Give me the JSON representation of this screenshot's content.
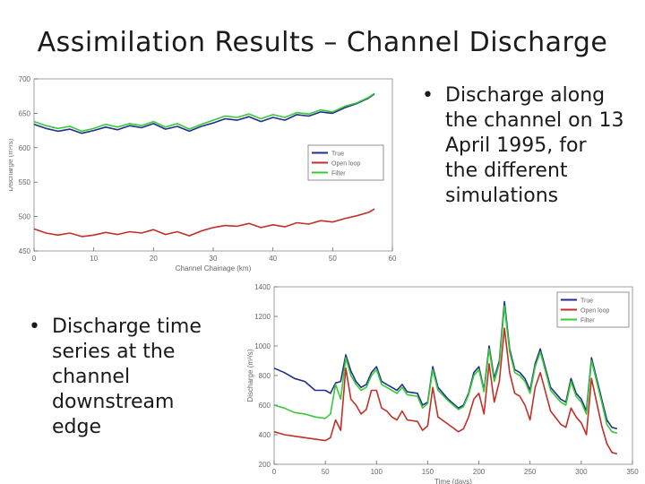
{
  "slide": {
    "title": "Assimilation Results – Channel Discharge"
  },
  "bullets": [
    {
      "marker": "•",
      "text": "Discharge along the channel on 13 April 1995, for the different simulations"
    },
    {
      "marker": "•",
      "text": "Discharge time series at the channel downstream edge"
    }
  ],
  "chart_data": [
    {
      "type": "line",
      "title": "",
      "xlabel": "Channel Chainage (km)",
      "ylabel": "Discharge (m³/s)",
      "xlim": [
        0,
        60
      ],
      "ylim": [
        450,
        700
      ],
      "xticks": [
        0,
        10,
        20,
        30,
        40,
        50,
        60
      ],
      "xtick_labels": [
        "0",
        "10",
        "20",
        "30",
        "40",
        "50",
        "60"
      ],
      "yticks": [
        450,
        500,
        550,
        600,
        650,
        700
      ],
      "ytick_labels": [
        "450",
        "500",
        "550",
        "600",
        "650",
        "700"
      ],
      "legend_position": "center-right",
      "series": [
        {
          "name": "True",
          "color": "#1f2f8a",
          "x": [
            0,
            2,
            4,
            6,
            8,
            10,
            12,
            14,
            16,
            18,
            20,
            22,
            24,
            26,
            28,
            30,
            32,
            34,
            36,
            38,
            40,
            42,
            44,
            46,
            48,
            50,
            52,
            54,
            56,
            57
          ],
          "y": [
            634,
            628,
            624,
            627,
            621,
            625,
            630,
            626,
            632,
            629,
            635,
            627,
            631,
            624,
            631,
            636,
            642,
            640,
            645,
            638,
            644,
            640,
            648,
            646,
            652,
            650,
            658,
            664,
            672,
            678
          ]
        },
        {
          "name": "Open loop",
          "color": "#c0302a",
          "x": [
            0,
            2,
            4,
            6,
            8,
            10,
            12,
            14,
            16,
            18,
            20,
            22,
            24,
            26,
            28,
            30,
            32,
            34,
            36,
            38,
            40,
            42,
            44,
            46,
            48,
            50,
            52,
            54,
            56,
            57
          ],
          "y": [
            482,
            476,
            473,
            476,
            471,
            473,
            477,
            474,
            478,
            476,
            481,
            474,
            478,
            472,
            479,
            484,
            487,
            486,
            490,
            484,
            488,
            485,
            491,
            489,
            494,
            492,
            497,
            501,
            506,
            511
          ]
        },
        {
          "name": "Filter",
          "color": "#38c838",
          "x": [
            0,
            2,
            4,
            6,
            8,
            10,
            12,
            14,
            16,
            18,
            20,
            22,
            24,
            26,
            28,
            30,
            32,
            34,
            36,
            38,
            40,
            42,
            44,
            46,
            48,
            50,
            52,
            54,
            56,
            57
          ],
          "y": [
            638,
            632,
            628,
            631,
            624,
            628,
            634,
            630,
            635,
            632,
            638,
            630,
            635,
            627,
            634,
            640,
            646,
            644,
            649,
            642,
            648,
            644,
            651,
            649,
            655,
            652,
            660,
            665,
            673,
            679
          ]
        }
      ]
    },
    {
      "type": "line",
      "title": "",
      "xlabel": "Time (days)",
      "ylabel": "Discharge (m³/s)",
      "xlim": [
        0,
        350
      ],
      "ylim": [
        200,
        1400
      ],
      "xticks": [
        0,
        50,
        100,
        150,
        200,
        250,
        300,
        350
      ],
      "xtick_labels": [
        "0",
        "50",
        "100",
        "150",
        "200",
        "250",
        "300",
        "350"
      ],
      "yticks": [
        200,
        400,
        600,
        800,
        1000,
        1200,
        1400
      ],
      "ytick_labels": [
        "200",
        "400",
        "600",
        "800",
        "1000",
        "1200",
        "1400"
      ],
      "legend_position": "top-right",
      "series": [
        {
          "name": "True",
          "color": "#1f2f8a",
          "x": [
            0,
            10,
            20,
            30,
            40,
            50,
            55,
            60,
            65,
            70,
            75,
            80,
            85,
            90,
            95,
            100,
            105,
            110,
            115,
            120,
            125,
            130,
            140,
            145,
            150,
            155,
            160,
            170,
            180,
            185,
            190,
            195,
            200,
            205,
            210,
            215,
            220,
            225,
            230,
            235,
            240,
            245,
            250,
            255,
            260,
            270,
            280,
            285,
            290,
            295,
            300,
            305,
            310,
            320,
            325,
            330,
            335
          ],
          "y": [
            850,
            820,
            780,
            760,
            700,
            700,
            680,
            750,
            760,
            940,
            830,
            760,
            720,
            740,
            820,
            860,
            760,
            740,
            720,
            700,
            740,
            690,
            680,
            600,
            620,
            860,
            720,
            640,
            580,
            600,
            680,
            820,
            860,
            700,
            1000,
            780,
            900,
            1300,
            980,
            840,
            820,
            780,
            700,
            880,
            980,
            720,
            640,
            620,
            780,
            680,
            640,
            560,
            920,
            640,
            500,
            450,
            440
          ]
        },
        {
          "name": "Open loop",
          "color": "#c0302a",
          "x": [
            0,
            10,
            20,
            30,
            40,
            50,
            55,
            60,
            65,
            70,
            75,
            80,
            85,
            90,
            95,
            100,
            105,
            110,
            115,
            120,
            125,
            130,
            140,
            145,
            150,
            155,
            160,
            170,
            180,
            185,
            190,
            195,
            200,
            205,
            210,
            215,
            220,
            225,
            230,
            235,
            240,
            245,
            250,
            255,
            260,
            270,
            280,
            285,
            290,
            295,
            300,
            305,
            310,
            320,
            325,
            330,
            335
          ],
          "y": [
            420,
            400,
            390,
            380,
            370,
            360,
            380,
            500,
            430,
            850,
            640,
            600,
            540,
            570,
            700,
            700,
            580,
            560,
            520,
            500,
            560,
            500,
            490,
            430,
            460,
            720,
            520,
            470,
            420,
            440,
            520,
            640,
            680,
            540,
            880,
            620,
            760,
            1120,
            820,
            680,
            660,
            600,
            500,
            720,
            820,
            560,
            470,
            450,
            580,
            520,
            480,
            400,
            780,
            460,
            340,
            280,
            270
          ]
        },
        {
          "name": "Filter",
          "color": "#38c838",
          "x": [
            0,
            10,
            20,
            30,
            40,
            50,
            55,
            60,
            65,
            70,
            75,
            80,
            85,
            90,
            95,
            100,
            105,
            110,
            115,
            120,
            125,
            130,
            140,
            145,
            150,
            155,
            160,
            170,
            180,
            185,
            190,
            195,
            200,
            205,
            210,
            215,
            220,
            225,
            230,
            235,
            240,
            245,
            250,
            255,
            260,
            270,
            280,
            285,
            290,
            295,
            300,
            305,
            310,
            320,
            325,
            330,
            335
          ],
          "y": [
            600,
            580,
            550,
            540,
            520,
            510,
            540,
            740,
            640,
            920,
            800,
            740,
            700,
            720,
            800,
            840,
            740,
            720,
            700,
            680,
            720,
            670,
            660,
            580,
            610,
            840,
            700,
            630,
            570,
            590,
            670,
            800,
            840,
            690,
            980,
            760,
            880,
            1270,
            960,
            820,
            800,
            760,
            680,
            860,
            960,
            700,
            620,
            600,
            760,
            660,
            620,
            540,
            900,
            620,
            470,
            420,
            410
          ]
        }
      ]
    }
  ]
}
